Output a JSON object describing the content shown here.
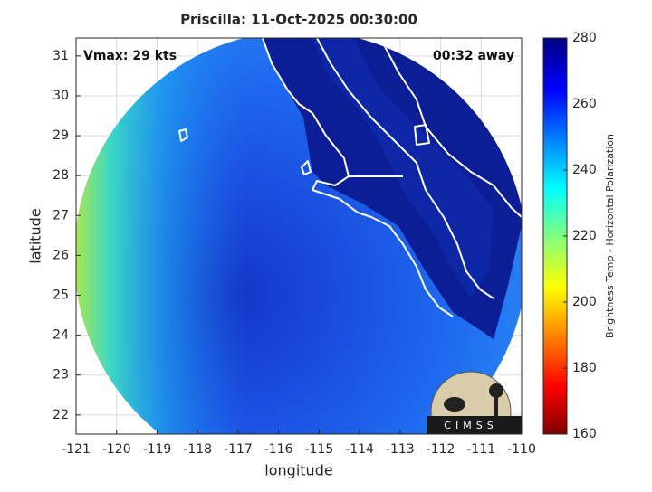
{
  "map": {
    "title": "Priscilla: 11-Oct-2025 00:30:00",
    "annotations": [
      "Vmax: 29 kts",
      "00:32 away"
    ],
    "xlabel": "longitude",
    "ylabel": "latitude",
    "xlim": [
      -121,
      -110
    ],
    "ylim": [
      21.52,
      31.45
    ],
    "xticks": [
      -121,
      -120,
      -119,
      -118,
      -117,
      -116,
      -115,
      -114,
      -113,
      -112,
      -111,
      -110
    ],
    "yticks": [
      22,
      23,
      24,
      25,
      26,
      27,
      28,
      29,
      30,
      31
    ],
    "grid": true,
    "colorbar": {
      "label": "Brightness Temp - Horizontal Polarization",
      "lim": [
        160,
        280
      ],
      "ticks": [
        160,
        180,
        200,
        220,
        240,
        260,
        280
      ]
    },
    "logo": "CIMSS"
  }
}
